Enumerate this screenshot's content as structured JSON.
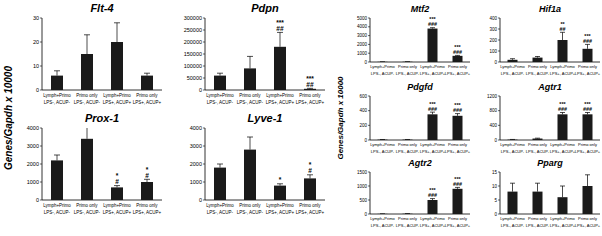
{
  "shared_labels": [
    "Genes/Gapdh x 10000",
    "Genes/Gapdh x 10000"
  ],
  "chart_data": [
    {
      "type": "bar",
      "title": "Flt-4",
      "color": "#1a1a1a",
      "categories": [
        "Lymph+Primo",
        "Primo only",
        "Lymph+Primo",
        "Primo only"
      ],
      "group_labels": [
        "LPS-, ACUP-",
        "LPS-, ACUP-",
        "LPS+, ACUP+",
        "LPS+, ACUP+"
      ],
      "values": [
        6,
        15,
        20,
        6
      ],
      "errors": [
        2,
        8,
        8,
        1
      ],
      "annotations": [
        null,
        null,
        null,
        null
      ],
      "ylim": [
        0,
        30
      ],
      "yticks": [
        0,
        10,
        20,
        30
      ]
    },
    {
      "type": "bar",
      "title": "Pdpn",
      "color": "#1a1a1a",
      "categories": [
        "Lymph+Primo",
        "Primo only",
        "Lymph+Primo",
        "Primo only"
      ],
      "group_labels": [
        "LPS-, ACUP-",
        "LPS-, ACUP-",
        "LPS+, ACUP+",
        "LPS+, ACUP+"
      ],
      "values": [
        60000,
        90000,
        180000,
        5000
      ],
      "errors": [
        10000,
        50000,
        60000,
        2000
      ],
      "annotations": [
        null,
        null,
        [
          "***",
          "##"
        ],
        [
          "***",
          "##"
        ]
      ],
      "ylim": [
        0,
        300000
      ],
      "yticks": [
        0,
        50000,
        100000,
        150000,
        200000,
        250000,
        300000
      ]
    },
    {
      "type": "bar",
      "title": "Prox-1",
      "color": "#1a1a1a",
      "categories": [
        "Lymph+Primo",
        "Primo only",
        "Lymph+Primo",
        "Primo only"
      ],
      "group_labels": [
        "LPS-, ACUP-",
        "LPS-, ACUP-",
        "LPS+, ACUP+",
        "LPS+, ACUP+"
      ],
      "values": [
        2200,
        3400,
        700,
        1000
      ],
      "errors": [
        300,
        900,
        100,
        150
      ],
      "annotations": [
        null,
        null,
        [
          "*",
          "#"
        ],
        [
          "*",
          "#"
        ]
      ],
      "ylim": [
        0,
        4000
      ],
      "yticks": [
        0,
        1000,
        2000,
        3000,
        4000
      ]
    },
    {
      "type": "bar",
      "title": "Lyve-1",
      "color": "#1a1a1a",
      "categories": [
        "Lymph+Primo",
        "Primo only",
        "Lymph+Primo",
        "Primo only"
      ],
      "group_labels": [
        "LPS-, ACUP-",
        "LPS-, ACUP-",
        "LPS+, ACUP+",
        "LPS+, ACUP+"
      ],
      "values": [
        1800,
        2800,
        800,
        1200
      ],
      "errors": [
        200,
        700,
        100,
        200
      ],
      "annotations": [
        null,
        null,
        [
          "*"
        ],
        [
          "*",
          "#"
        ]
      ],
      "ylim": [
        0,
        4000
      ],
      "yticks": [
        0,
        1000,
        2000,
        3000,
        4000
      ]
    },
    {
      "type": "bar",
      "title": "Mtf2",
      "color": "#1a1a1a",
      "categories": [
        "Lymph+Primo",
        "Primo only",
        "Lymph+Primo",
        "Primo only"
      ],
      "group_labels": [
        "LPS-, ACUP-",
        "LPS-, ACUP-",
        "LPS+, ACUP+",
        "LPS+, ACUP+"
      ],
      "values": [
        20,
        30,
        3800,
        700
      ],
      "errors": [
        5,
        5,
        100,
        50
      ],
      "annotations": [
        null,
        null,
        [
          "***",
          "###"
        ],
        [
          "***",
          "###"
        ]
      ],
      "ylim": [
        0,
        5000
      ],
      "yticks": [
        0,
        1000,
        2000,
        3000,
        4000,
        5000
      ]
    },
    {
      "type": "bar",
      "title": "Hif1a",
      "color": "#1a1a1a",
      "categories": [
        "Lymph+Primo",
        "Primo only",
        "Lymph+Primo",
        "Primo only"
      ],
      "group_labels": [
        "LPS-, ACUP-",
        "LPS-, ACUP-",
        "LPS+, ACUP+",
        "LPS+, ACUP+"
      ],
      "values": [
        20,
        40,
        200,
        120
      ],
      "errors": [
        10,
        10,
        70,
        40
      ],
      "annotations": [
        null,
        null,
        [
          "**",
          "##"
        ],
        [
          "***",
          "###"
        ]
      ],
      "ylim": [
        0,
        400
      ],
      "yticks": [
        0,
        100,
        200,
        300,
        400
      ]
    },
    {
      "type": "bar",
      "title": "Pdgfd",
      "color": "#1a1a1a",
      "categories": [
        "Lymph+Primo",
        "Primo only",
        "Lymph+Primo",
        "Primo only"
      ],
      "group_labels": [
        "LPS-, ACUP-",
        "LPS-, ACUP-",
        "LPS+, ACUP+",
        "LPS+, ACUP+"
      ],
      "values": [
        5,
        5,
        350,
        330
      ],
      "errors": [
        2,
        2,
        30,
        30
      ],
      "annotations": [
        null,
        null,
        [
          "***",
          "###"
        ],
        [
          "***",
          "###"
        ]
      ],
      "ylim": [
        0,
        600
      ],
      "yticks": [
        0,
        200,
        400,
        600
      ]
    },
    {
      "type": "bar",
      "title": "Agtr1",
      "color": "#1a1a1a",
      "categories": [
        "Lymph+Primo",
        "Primo only",
        "Lymph+Primo",
        "Primo only"
      ],
      "group_labels": [
        "LPS-, ACUP-",
        "LPS-, ACUP-",
        "LPS+, ACUP+",
        "LPS+, ACUP+"
      ],
      "values": [
        10,
        40,
        700,
        700
      ],
      "errors": [
        5,
        10,
        50,
        50
      ],
      "annotations": [
        null,
        null,
        [
          "***",
          "###"
        ],
        [
          "***",
          "###"
        ]
      ],
      "ylim": [
        0,
        1200
      ],
      "yticks": [
        0,
        400,
        800,
        1200
      ]
    },
    {
      "type": "bar",
      "title": "Agtr2",
      "color": "#1a1a1a",
      "categories": [
        "Lymph+Primo",
        "Primo only",
        "Lymph+Primo",
        "Primo only"
      ],
      "group_labels": [
        "LPS-, ACUP-",
        "LPS-, ACUP-",
        "LPS+, ACUP+",
        "LPS+, ACUP+"
      ],
      "values": [
        5,
        10,
        500,
        900
      ],
      "errors": [
        2,
        5,
        50,
        50
      ],
      "annotations": [
        null,
        null,
        [
          "***",
          "###"
        ],
        [
          "***",
          "###"
        ]
      ],
      "ylim": [
        0,
        1500
      ],
      "yticks": [
        0,
        500,
        1000,
        1500
      ]
    },
    {
      "type": "bar",
      "title": "Pparg",
      "color": "#1a1a1a",
      "categories": [
        "Lymph+Primo",
        "Primo only",
        "Lymph+Primo",
        "Primo only"
      ],
      "group_labels": [
        "LPS-, ACUP-",
        "LPS-, ACUP-",
        "LPS+, ACUP+",
        "LPS+, ACUP+"
      ],
      "values": [
        8,
        8,
        6,
        10
      ],
      "errors": [
        3,
        3,
        4,
        4
      ],
      "annotations": [
        null,
        null,
        null,
        null
      ],
      "ylim": [
        0,
        15
      ],
      "yticks": [
        0,
        5,
        10,
        15
      ]
    }
  ]
}
